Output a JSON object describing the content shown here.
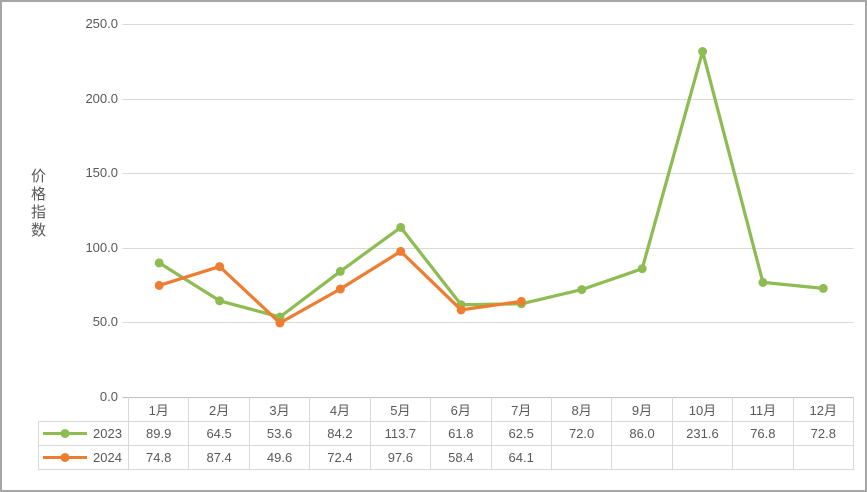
{
  "chart_data": {
    "type": "line",
    "title": "",
    "ylabel": "价格指数",
    "xlabel": "",
    "ylim": [
      0,
      250
    ],
    "yticks": [
      "0.0",
      "50.0",
      "100.0",
      "150.0",
      "200.0",
      "250.0"
    ],
    "grid": true,
    "legend_position": "table-left",
    "categories": [
      "1月",
      "2月",
      "3月",
      "4月",
      "5月",
      "6月",
      "7月",
      "8月",
      "9月",
      "10月",
      "11月",
      "12月"
    ],
    "series": [
      {
        "name": "2023",
        "color": "#8ebc52",
        "values": [
          89.9,
          64.5,
          53.6,
          84.2,
          113.7,
          61.8,
          62.5,
          72.0,
          86.0,
          231.6,
          76.8,
          72.8
        ]
      },
      {
        "name": "2024",
        "color": "#ed7d31",
        "values": [
          74.8,
          87.4,
          49.6,
          72.4,
          97.6,
          58.4,
          64.1,
          null,
          null,
          null,
          null,
          null
        ]
      }
    ]
  }
}
